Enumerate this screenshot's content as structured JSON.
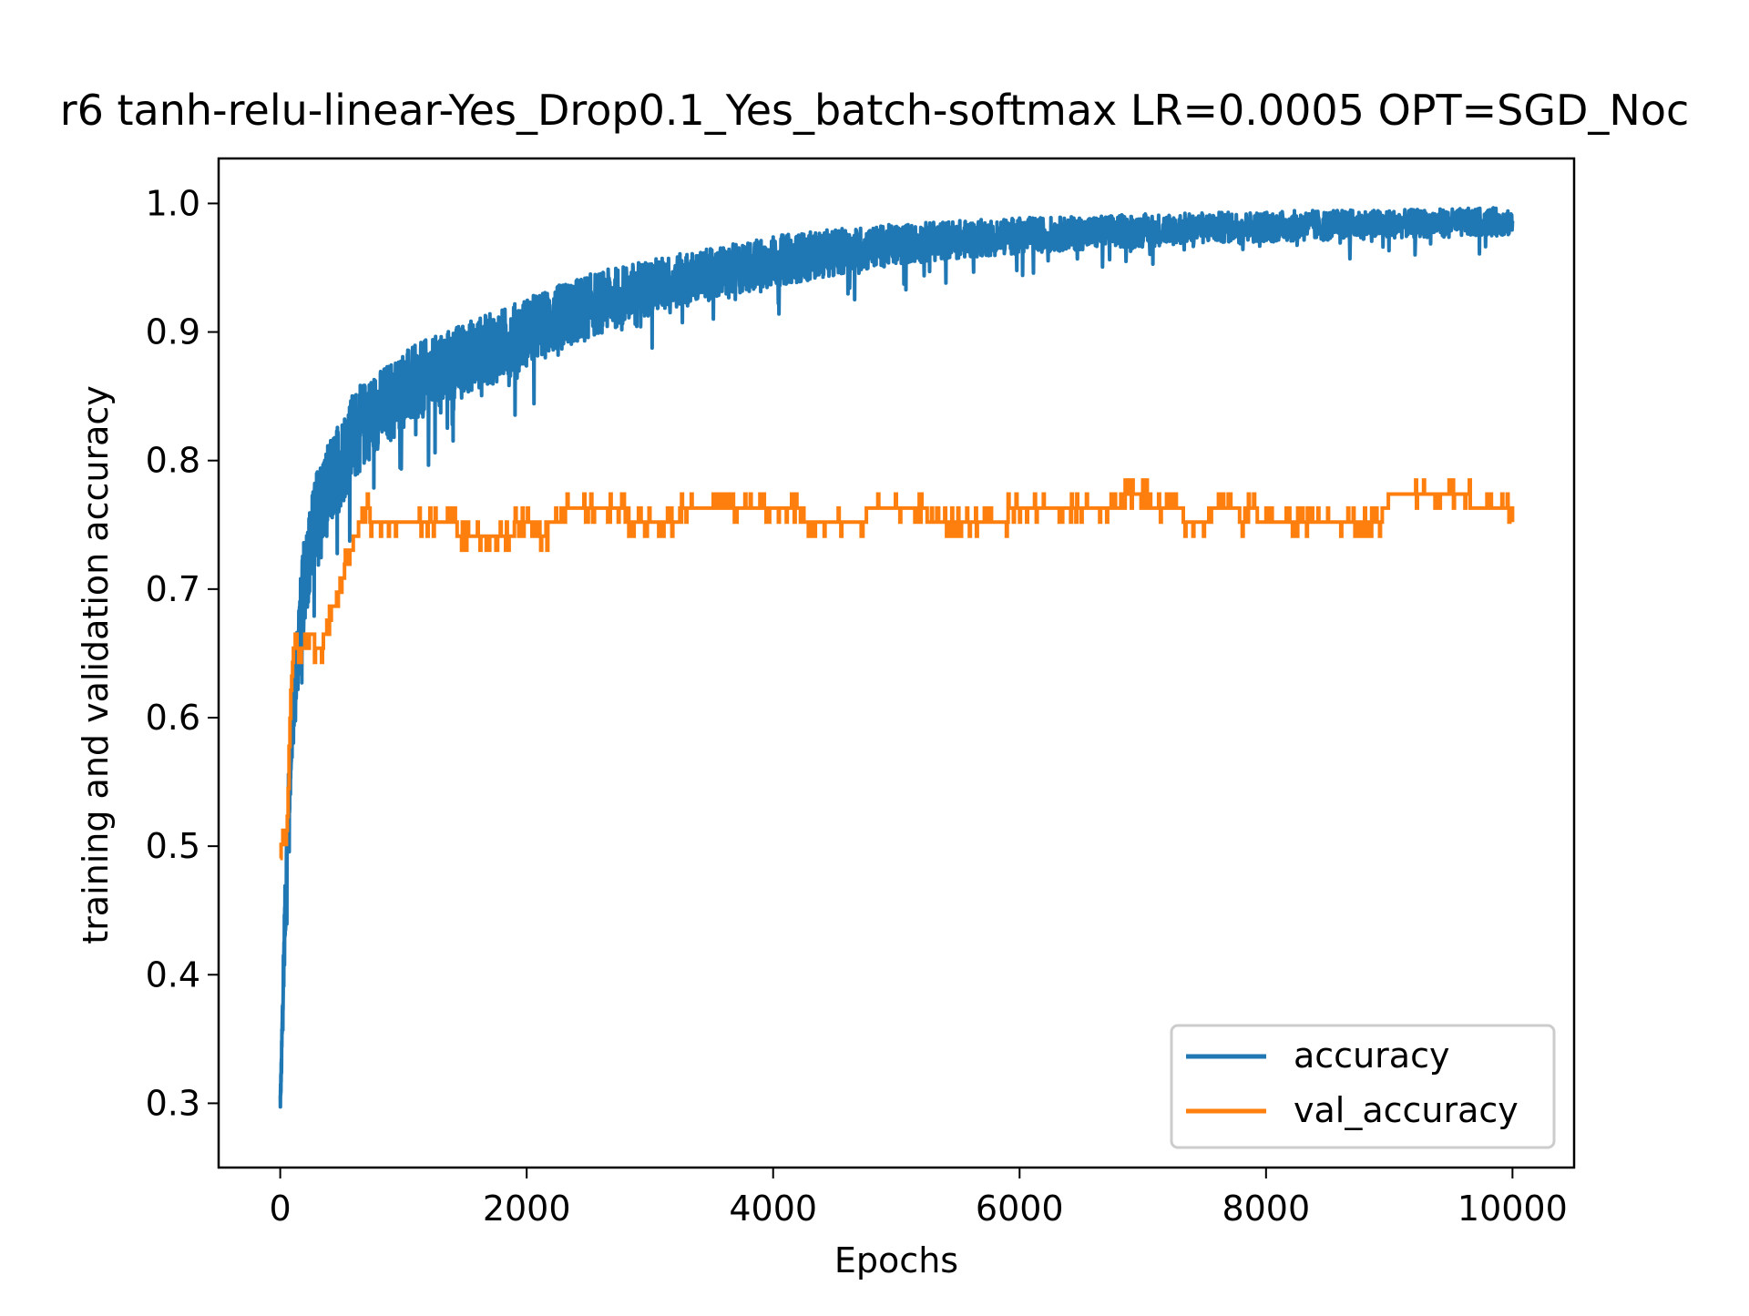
{
  "chart_data": {
    "type": "line",
    "title": "r6 tanh-relu-linear-Yes_Drop0.1_Yes_batch-softmax LR=0.0005 OPT=SGD_Noc",
    "xlabel": "Epochs",
    "ylabel": "training and validation accuracy",
    "xlim": [
      -500,
      10500
    ],
    "ylim": [
      0.25,
      1.035
    ],
    "x_ticks": [
      0,
      2000,
      4000,
      6000,
      8000,
      10000
    ],
    "x_tick_labels": [
      "0",
      "2000",
      "4000",
      "6000",
      "8000",
      "10000"
    ],
    "y_ticks": [
      0.3,
      0.4,
      0.5,
      0.6,
      0.7,
      0.8,
      0.9,
      1.0
    ],
    "y_tick_labels": [
      "0.3",
      "0.4",
      "0.5",
      "0.6",
      "0.7",
      "0.8",
      "0.9",
      "1.0"
    ],
    "grid": false,
    "legend_position": "lower-right",
    "series": [
      {
        "name": "accuracy",
        "color": "#1f77b4",
        "x": [
          0,
          10,
          25,
          50,
          75,
          100,
          150,
          200,
          300,
          400,
          500,
          600,
          800,
          1000,
          1200,
          1500,
          1800,
          2000,
          2500,
          3000,
          3500,
          4000,
          4500,
          5000,
          5500,
          6000,
          6500,
          7000,
          7500,
          8000,
          8500,
          9000,
          9500,
          10000
        ],
        "y": [
          0.3,
          0.33,
          0.4,
          0.48,
          0.55,
          0.6,
          0.66,
          0.71,
          0.76,
          0.78,
          0.8,
          0.82,
          0.84,
          0.855,
          0.865,
          0.88,
          0.89,
          0.9,
          0.92,
          0.935,
          0.945,
          0.955,
          0.962,
          0.968,
          0.972,
          0.975,
          0.977,
          0.979,
          0.981,
          0.982,
          0.983,
          0.984,
          0.985,
          0.986
        ],
        "noise_amplitude": [
          0.01,
          0.01,
          0.02,
          0.03,
          0.03,
          0.03,
          0.035,
          0.035,
          0.035,
          0.035,
          0.035,
          0.035,
          0.03,
          0.03,
          0.03,
          0.028,
          0.028,
          0.027,
          0.025,
          0.022,
          0.02,
          0.02,
          0.018,
          0.016,
          0.015,
          0.014,
          0.013,
          0.013,
          0.012,
          0.012,
          0.012,
          0.011,
          0.011,
          0.011
        ]
      },
      {
        "name": "val_accuracy",
        "color": "#ff7f0e",
        "x": [
          0,
          20,
          40,
          60,
          80,
          100,
          120,
          150,
          200,
          250,
          300,
          350,
          400,
          450,
          500,
          550,
          600,
          650,
          700,
          800,
          1000,
          1400,
          1500,
          1700,
          2000,
          2100,
          2200,
          2300,
          2600,
          3000,
          3500,
          4000,
          4500,
          5000,
          5500,
          5800,
          6000,
          6500,
          7000,
          7300,
          7400,
          7600,
          7700,
          7800,
          7900,
          8000,
          8500,
          8900,
          9000,
          9500,
          10000
        ],
        "y": [
          0.49,
          0.51,
          0.5,
          0.53,
          0.61,
          0.65,
          0.67,
          0.64,
          0.66,
          0.67,
          0.65,
          0.66,
          0.68,
          0.69,
          0.71,
          0.72,
          0.74,
          0.75,
          0.76,
          0.75,
          0.75,
          0.75,
          0.74,
          0.74,
          0.75,
          0.74,
          0.75,
          0.76,
          0.76,
          0.755,
          0.76,
          0.76,
          0.755,
          0.76,
          0.755,
          0.755,
          0.76,
          0.765,
          0.77,
          0.76,
          0.75,
          0.76,
          0.77,
          0.755,
          0.76,
          0.75,
          0.755,
          0.75,
          0.77,
          0.77,
          0.765
        ],
        "step_size": 0.0109
      }
    ]
  }
}
